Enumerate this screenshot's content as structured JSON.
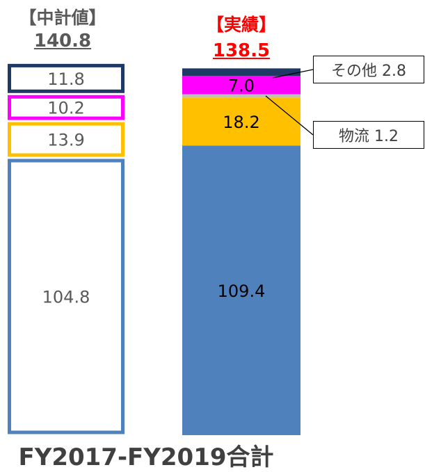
{
  "chart_data": {
    "type": "bar",
    "stacked": true,
    "categories": [
      "【中計値】",
      "【実績】"
    ],
    "category_totals": [
      "140.8",
      "138.5"
    ],
    "ylim": [
      0,
      140.8
    ],
    "series": [
      {
        "values": [
          104.8,
          109.4
        ],
        "labels": [
          "104.8",
          "109.4"
        ],
        "fill": [
          "#ffffff",
          "#4f81bd"
        ],
        "stroke": "#4f81bd"
      },
      {
        "values": [
          13.9,
          18.2
        ],
        "labels": [
          "13.9",
          "18.2"
        ],
        "fill": [
          "#ffffff",
          "#ffc000"
        ],
        "stroke": "#ffc000"
      },
      {
        "values": [
          null,
          1.2
        ],
        "labels": [
          "",
          ""
        ],
        "fill": [
          "#ffffff",
          "#bfbfbf"
        ],
        "stroke": "#bfbfbf"
      },
      {
        "values": [
          10.2,
          7.0
        ],
        "labels": [
          "10.2",
          "7.0"
        ],
        "fill": [
          "#ffffff",
          "#ff00ff"
        ],
        "stroke": "#ff00ff"
      },
      {
        "values": [
          11.8,
          2.8
        ],
        "labels": [
          "11.8",
          ""
        ],
        "fill": [
          "#ffffff",
          "#1f3864"
        ],
        "stroke": "#1f3864"
      }
    ],
    "callouts": [
      {
        "text": "その他 2.8",
        "series_index": 4,
        "category_index": 1
      },
      {
        "text": "物流 1.2",
        "series_index": 2,
        "category_index": 1
      }
    ],
    "footer": "FY2017-FY2019合計",
    "colors": {
      "plan_header": "#595959",
      "actual_header": "#ff0000"
    },
    "grid": false,
    "legend": "none"
  }
}
